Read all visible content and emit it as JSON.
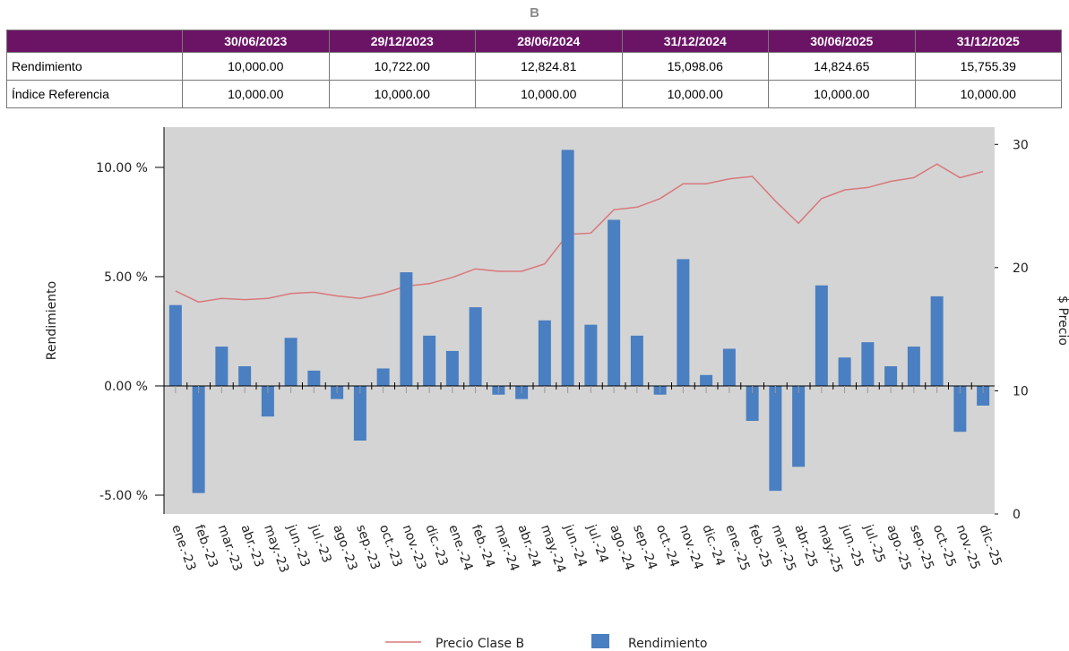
{
  "header": {
    "title": "B"
  },
  "table": {
    "columns": [
      "30/06/2023",
      "29/12/2023",
      "28/06/2024",
      "31/12/2024",
      "30/06/2025",
      "31/12/2025"
    ],
    "rows": [
      {
        "label": "Rendimiento",
        "values": [
          "10,000.00",
          "10,722.00",
          "12,824.81",
          "15,098.06",
          "14,824.65",
          "15,755.39"
        ]
      },
      {
        "label": "Índice Referencia",
        "values": [
          "10,000.00",
          "10,000.00",
          "10,000.00",
          "10,000.00",
          "10,000.00",
          "10,000.00"
        ]
      }
    ]
  },
  "chart_data": {
    "type": "bar_line",
    "y_label": "Rendimiento",
    "y2_label": "$ Precio",
    "categories": [
      "ene.-23",
      "feb.-23",
      "mar.-23",
      "abr.-23",
      "may.-23",
      "jun.-23",
      "jul.-23",
      "ago.-23",
      "sep.-23",
      "oct.-23",
      "nov.-23",
      "dic.-23",
      "ene.-24",
      "feb.-24",
      "mar.-24",
      "abr.-24",
      "may.-24",
      "jun.-24",
      "jul.-24",
      "ago.-24",
      "sep.-24",
      "oct.-24",
      "nov.-24",
      "dic.-24",
      "ene.-25",
      "feb.-25",
      "mar.-25",
      "abr.-25",
      "may.-25",
      "jun.-25",
      "jul.-25",
      "ago.-25",
      "sep.-25",
      "oct.-25",
      "nov.-25",
      "dic.-25"
    ],
    "series": [
      {
        "name": "Precio Clase B",
        "color": "#d9787a",
        "axis": "y2",
        "kind": "line",
        "values": [
          18.1,
          17.2,
          17.5,
          17.4,
          17.5,
          17.9,
          18.0,
          17.7,
          17.5,
          17.9,
          18.5,
          18.7,
          19.2,
          19.9,
          19.7,
          19.7,
          20.3,
          22.7,
          22.8,
          24.7,
          24.9,
          25.6,
          26.8,
          26.8,
          27.2,
          27.4,
          25.4,
          23.6,
          25.6,
          26.3,
          26.5,
          27.0,
          27.3,
          28.4,
          27.3,
          27.8
        ]
      },
      {
        "name": "Rendimiento",
        "color": "#4a7fc1",
        "kind": "bar",
        "values": [
          3.7,
          -4.9,
          1.8,
          0.9,
          -1.4,
          2.2,
          0.7,
          -0.6,
          -2.5,
          0.8,
          5.2,
          2.3,
          1.6,
          3.6,
          -0.4,
          -0.6,
          3.0,
          10.8,
          2.8,
          7.6,
          2.3,
          -0.4,
          5.8,
          0.5,
          1.7,
          -1.6,
          -4.8,
          -3.7,
          4.6,
          1.3,
          2.0,
          0.9,
          1.8,
          4.1,
          -2.1,
          -0.9
        ]
      }
    ],
    "ylim": [
      -5.86,
      11.84
    ],
    "yticks": [
      {
        "value": -5,
        "label": "-5.00 %"
      },
      {
        "value": 0,
        "label": "0.00 %"
      },
      {
        "value": 5,
        "label": "5.00 %"
      },
      {
        "value": 10,
        "label": "10.00 %"
      }
    ],
    "y2lim": [
      0,
      31.4
    ],
    "y2ticks": [
      0,
      10,
      20,
      30
    ]
  }
}
